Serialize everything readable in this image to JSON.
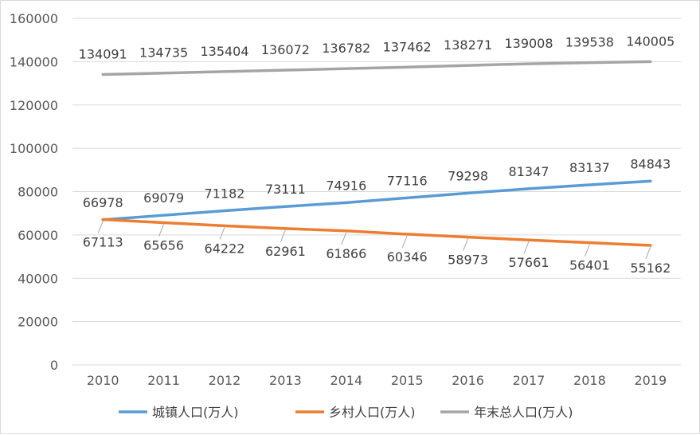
{
  "chart_data": {
    "type": "line",
    "categories": [
      "2010",
      "2011",
      "2012",
      "2013",
      "2014",
      "2015",
      "2016",
      "2017",
      "2018",
      "2019"
    ],
    "series": [
      {
        "name": "城镇人口(万人)",
        "color": "#5b9bd5",
        "values": [
          66978,
          69079,
          71182,
          73111,
          74916,
          77116,
          79298,
          81347,
          83137,
          84843
        ]
      },
      {
        "name": "乡村人口(万人)",
        "color": "#ed7d31",
        "values": [
          67113,
          65656,
          64222,
          62961,
          61866,
          60346,
          58973,
          57661,
          56401,
          55162
        ]
      },
      {
        "name": "年末总人口(万人)",
        "color": "#a5a5a5",
        "values": [
          134091,
          134735,
          135404,
          136072,
          136782,
          137462,
          138271,
          139008,
          139538,
          140005
        ]
      }
    ],
    "yticks": [
      "0",
      "20000",
      "40000",
      "60000",
      "80000",
      "100000",
      "120000",
      "140000",
      "160000"
    ],
    "ylim": [
      0,
      160000
    ],
    "grid": true,
    "legend_position": "bottom"
  }
}
